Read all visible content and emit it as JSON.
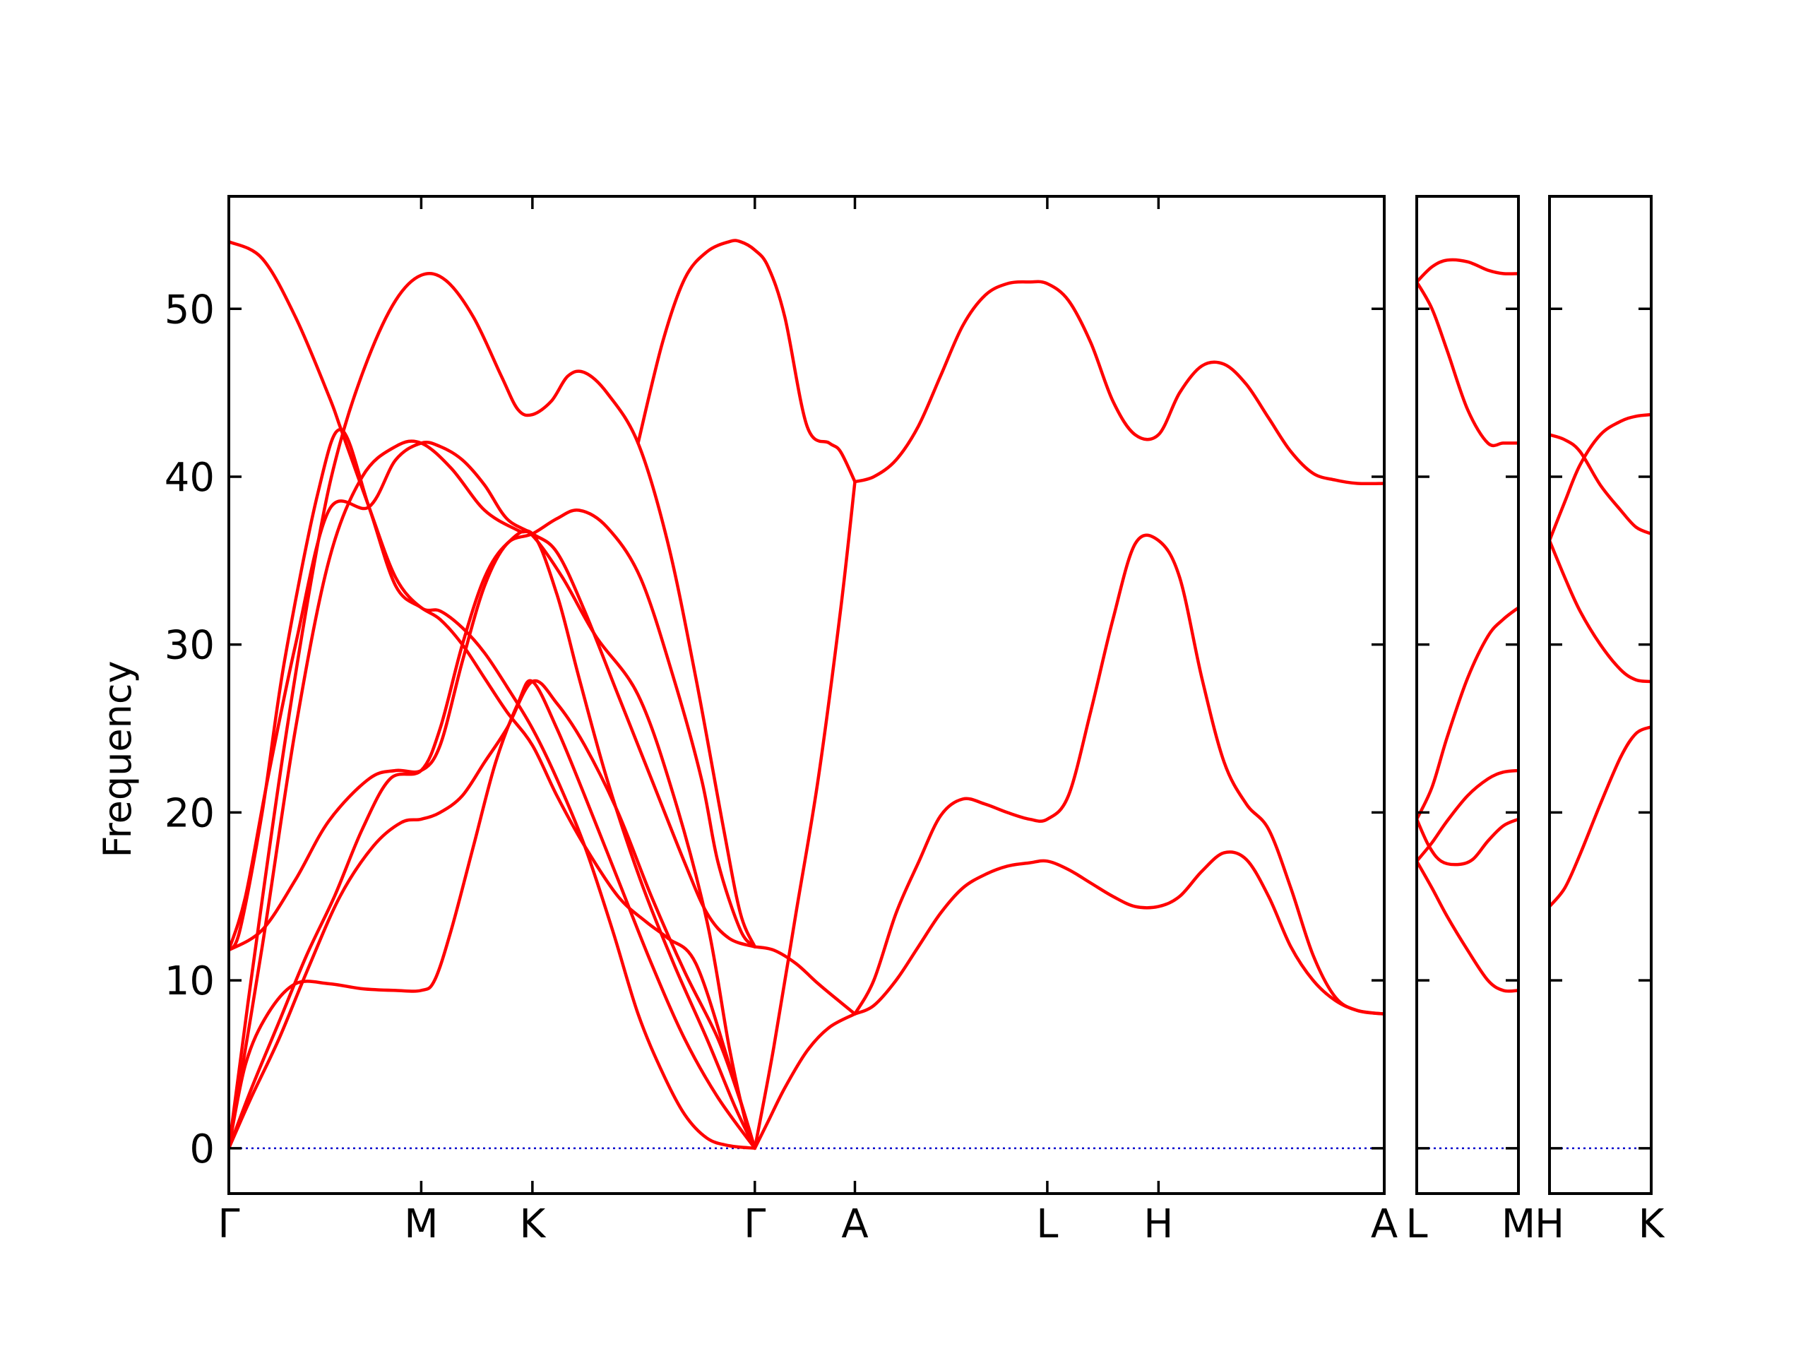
{
  "chart_data": {
    "type": "line",
    "ylabel": "Frequency",
    "ylim": [
      -2.7,
      56.7
    ],
    "yticks": [
      0,
      10,
      20,
      30,
      40,
      50
    ],
    "grid": false,
    "colors": {
      "bands": "#ff0000",
      "zero_line": "#0000cc",
      "frame": "#000000"
    },
    "panels": [
      {
        "name": "main",
        "x_range": [
          0,
          10.39
        ],
        "ticks": [
          {
            "label": "Γ",
            "x": 0
          },
          {
            "label": "M",
            "x": 1.73
          },
          {
            "label": "K",
            "x": 2.73
          },
          {
            "label": "Γ",
            "x": 4.73
          },
          {
            "label": "A",
            "x": 5.63
          },
          {
            "label": "L",
            "x": 7.36
          },
          {
            "label": "H",
            "x": 8.36
          },
          {
            "label": "A",
            "x": 10.39
          }
        ],
        "bands": [
          {
            "name": "b1",
            "x": [
              0,
              0.2,
              0.45,
              0.7,
              0.95,
              1.2,
              1.45,
              1.73,
              1.9,
              2.1,
              2.3,
              2.5,
              2.73,
              2.95,
              3.15,
              3.4,
              3.7,
              4.0,
              4.3,
              4.55,
              4.73
            ],
            "y": [
              0,
              3.5,
              7.5,
              11.5,
              15,
              19,
              22,
              22.5,
              25,
              30,
              34,
              36,
              36.6,
              33,
              28,
              22,
              16,
              11,
              6.5,
              2.5,
              0
            ]
          },
          {
            "name": "b2",
            "x": [
              0,
              0.2,
              0.45,
              0.7,
              1.0,
              1.3,
              1.55,
              1.73,
              1.9,
              2.1,
              2.3,
              2.5,
              2.73,
              2.95,
              3.2,
              3.5,
              3.8,
              4.1,
              4.4,
              4.6,
              4.73
            ],
            "y": [
              0,
              3,
              6.5,
              10.5,
              15,
              18,
              19.4,
              19.6,
              20,
              21,
              23,
              25,
              27.8,
              26.5,
              24,
              20,
              15,
              10.5,
              6.5,
              2.8,
              0
            ]
          },
          {
            "name": "b3",
            "x": [
              0,
              0.15,
              0.35,
              0.6,
              0.9,
              1.2,
              1.5,
              1.73,
              1.85,
              2.0,
              2.2,
              2.4,
              2.6,
              2.73,
              2.95,
              3.2,
              3.5,
              3.8,
              4.1,
              4.4,
              4.73
            ],
            "y": [
              0,
              5,
              8,
              9.8,
              9.8,
              9.5,
              9.4,
              9.4,
              10,
              13,
              18,
              23,
              26.5,
              27.8,
              25,
              21,
              16,
              11,
              6.5,
              3,
              0
            ]
          },
          {
            "name": "b4",
            "x": [
              0,
              0.3,
              0.6,
              0.9,
              1.26,
              1.5,
              1.73,
              1.9,
              2.1,
              2.3,
              2.5,
              2.73,
              2.95,
              3.15,
              3.4,
              3.7,
              4.0,
              4.25,
              4.4,
              4.6,
              4.73
            ],
            "y": [
              11.8,
              13,
              16,
              19.5,
              22,
              22.5,
              22.5,
              24,
              29,
              33.5,
              36,
              36.6,
              37.5,
              38,
              37,
              34,
              28,
              22,
              17,
              13,
              12
            ]
          },
          {
            "name": "b5",
            "x": [
              0,
              0.15,
              0.35,
              0.6,
              0.9,
              1.26,
              1.5,
              1.73,
              1.9,
              2.1,
              2.3,
              2.5,
              2.73,
              2.95,
              3.2,
              3.5,
              3.8,
              4.1,
              4.3,
              4.5,
              4.73
            ],
            "y": [
              11.8,
              15,
              22,
              30,
              38,
              38.2,
              41,
              42,
              41.8,
              41,
              39.5,
              37.5,
              36.6,
              35.5,
              32,
              27,
              22,
              17,
              14,
              12.5,
              12
            ]
          },
          {
            "name": "b6",
            "x": [
              0,
              0.1,
              0.3,
              0.5,
              0.8,
              1.01,
              1.26,
              1.5,
              1.73,
              1.9,
              2.1,
              2.3,
              2.5,
              2.73,
              2.95,
              3.2,
              3.5,
              3.75,
              3.95,
              4.2,
              4.5,
              4.73
            ],
            "y": [
              11.8,
              13,
              20,
              29,
              39,
              42.8,
              38.2,
              33.5,
              32.2,
              31.5,
              30,
              28,
              26,
              24,
              21,
              18,
              15,
              13.5,
              12.5,
              11,
              5,
              0
            ]
          },
          {
            "name": "b7",
            "x": [
              0,
              0.3,
              0.6,
              0.9,
              1.01,
              1.26,
              1.5,
              1.73,
              1.9,
              2.1,
              2.3,
              2.5,
              2.73,
              2.95,
              3.2,
              3.45,
              3.68,
              3.9,
              4.1,
              4.3,
              4.5,
              4.73
            ],
            "y": [
              54,
              53,
              49.5,
              44.8,
              42.8,
              38.2,
              34,
              32.2,
              32,
              31,
              29.5,
              27.5,
              25,
              22,
              18,
              13,
              8,
              4.5,
              2,
              0.6,
              0.15,
              0
            ]
          },
          {
            "name": "b8",
            "x": [
              0,
              0.2,
              0.5,
              0.8,
              1.0,
              1.25,
              1.5,
              1.73,
              1.95,
              2.2,
              2.45,
              2.6,
              2.73,
              2.9,
              3.05,
              3.2,
              3.4,
              3.68,
              3.95,
              4.2,
              4.45,
              4.6,
              4.73
            ],
            "y": [
              0,
              10,
              24,
              36,
              42,
              47,
              50.5,
              52,
              51.7,
              49.5,
              46,
              44,
              43.7,
              44.5,
              46,
              46.2,
              45,
              42,
              36,
              28,
              19,
              14,
              12
            ]
          },
          {
            "name": "b9",
            "x": [
              0,
              0.3,
              0.6,
              0.9,
              1.2,
              1.5,
              1.73,
              2.0,
              2.3,
              2.6,
              2.73,
              3.0,
              3.3,
              3.68,
              4.0,
              4.3,
              4.5,
              4.65,
              4.73
            ],
            "y": [
              0,
              12,
              25,
              35,
              40,
              41.8,
              42,
              40.5,
              38,
              36.8,
              36.5,
              34,
              30.5,
              27,
              21,
              13.5,
              6,
              1.5,
              0
            ]
          },
          {
            "name": "b10",
            "x": [
              4.73,
              4.85,
              5.0,
              5.2,
              5.4,
              5.63
            ],
            "y": [
              0,
              1.6,
              3.6,
              5.8,
              7.2,
              8
            ]
          },
          {
            "name": "b11",
            "x": [
              4.73,
              4.9,
              5.1,
              5.3,
              5.5,
              5.63
            ],
            "y": [
              12,
              11.8,
              11,
              9.8,
              8.7,
              8
            ]
          },
          {
            "name": "b12",
            "x": [
              3.68,
              3.9,
              4.1,
              4.3,
              4.5,
              4.6,
              4.73,
              4.85,
              5.0,
              5.2,
              5.4,
              5.5,
              5.63
            ],
            "y": [
              42,
              48,
              51.8,
              53.4,
              54,
              54,
              53.5,
              52.5,
              49.5,
              43,
              42,
              41.5,
              39.7
            ]
          },
          {
            "name": "b13",
            "x": [
              4.73,
              4.9,
              5.1,
              5.3,
              5.5,
              5.63
            ],
            "y": [
              0,
              6,
              14,
              22,
              32,
              39.7
            ]
          },
          {
            "name": "b14",
            "x": [
              5.63,
              5.8,
              6.0,
              6.2,
              6.4,
              6.6,
              6.8,
              7.0,
              7.2,
              7.36,
              7.55,
              7.75,
              7.95,
              8.15,
              8.36,
              8.55,
              8.75,
              8.95,
              9.15,
              9.35,
              9.55,
              9.75,
              9.95,
              10.15,
              10.39
            ],
            "y": [
              39.7,
              40,
              41,
              43,
              46,
              49,
              50.8,
              51.5,
              51.6,
              51.5,
              50.5,
              48,
              44.5,
              42.5,
              42.5,
              45,
              46.6,
              46.7,
              45.5,
              43.5,
              41.5,
              40.2,
              39.8,
              39.6,
              39.6
            ]
          },
          {
            "name": "b15",
            "x": [
              5.63,
              5.8,
              6.0,
              6.2,
              6.4,
              6.6,
              6.8,
              7.0,
              7.2,
              7.36,
              7.55,
              7.75,
              7.95,
              8.15,
              8.36,
              8.55,
              8.75,
              8.95,
              9.15,
              9.35,
              9.55,
              9.75,
              9.95,
              10.15,
              10.39
            ],
            "y": [
              8,
              10,
              14,
              17,
              19.8,
              20.8,
              20.5,
              20,
              19.6,
              19.6,
              21,
              26,
              31.5,
              36,
              36.2,
              34,
              28,
              23,
              20.5,
              19,
              15.5,
              11.5,
              9,
              8.2,
              8
            ]
          },
          {
            "name": "b16",
            "x": [
              5.63,
              5.8,
              6.0,
              6.2,
              6.4,
              6.6,
              6.8,
              7.0,
              7.2,
              7.36,
              7.55,
              7.75,
              7.95,
              8.15,
              8.36,
              8.55,
              8.75,
              8.95,
              9.15,
              9.35,
              9.55,
              9.75,
              9.95,
              10.15,
              10.39
            ],
            "y": [
              8,
              8.5,
              10,
              12,
              14,
              15.5,
              16.3,
              16.8,
              17,
              17.1,
              16.6,
              15.8,
              15,
              14.4,
              14.4,
              15,
              16.5,
              17.6,
              17.2,
              15,
              12,
              10,
              8.8,
              8.2,
              8
            ]
          }
        ]
      },
      {
        "name": "L-M",
        "x_range": [
          0,
          1.0
        ],
        "ticks": [
          {
            "label": "L",
            "x": 0
          },
          {
            "label": "M",
            "x": 1.0
          }
        ],
        "bands": [
          {
            "name": "b1",
            "x": [
              0,
              0.15,
              0.3,
              0.5,
              0.7,
              0.85,
              1.0
            ],
            "y": [
              51.6,
              52.5,
              52.9,
              52.8,
              52.3,
              52.1,
              52.1
            ]
          },
          {
            "name": "b2",
            "x": [
              0,
              0.15,
              0.3,
              0.5,
              0.7,
              0.85,
              1.0
            ],
            "y": [
              51.6,
              50,
              47.5,
              44,
              42,
              42,
              42
            ]
          },
          {
            "name": "b3",
            "x": [
              0,
              0.15,
              0.3,
              0.5,
              0.7,
              0.85,
              1.0
            ],
            "y": [
              19.6,
              21.5,
              24.5,
              28,
              30.5,
              31.5,
              32.2
            ]
          },
          {
            "name": "b4",
            "x": [
              0,
              0.15,
              0.3,
              0.5,
              0.7,
              0.85,
              1.0
            ],
            "y": [
              17.1,
              18.2,
              19.5,
              21,
              22,
              22.4,
              22.5
            ]
          },
          {
            "name": "b5",
            "x": [
              0,
              0.12,
              0.24,
              0.4,
              0.55,
              0.7,
              0.85,
              1.0
            ],
            "y": [
              19.6,
              18,
              17.1,
              16.9,
              17.2,
              18.3,
              19.2,
              19.6
            ]
          },
          {
            "name": "b6",
            "x": [
              0,
              0.15,
              0.3,
              0.5,
              0.7,
              0.85,
              1.0
            ],
            "y": [
              17.1,
              15.5,
              13.8,
              11.8,
              10,
              9.4,
              9.4
            ]
          }
        ]
      },
      {
        "name": "H-K",
        "x_range": [
          0,
          1.0
        ],
        "ticks": [
          {
            "label": "H",
            "x": 0
          },
          {
            "label": "K",
            "x": 1.0
          }
        ],
        "bands": [
          {
            "name": "b1",
            "x": [
              0,
              0.15,
              0.3,
              0.5,
              0.7,
              0.85,
              1.0
            ],
            "y": [
              42.5,
              42.2,
              41.5,
              39.5,
              38,
              37,
              36.6
            ]
          },
          {
            "name": "b2",
            "x": [
              0,
              0.15,
              0.3,
              0.5,
              0.7,
              0.85,
              1.0
            ],
            "y": [
              36.2,
              38.5,
              40.7,
              42.5,
              43.3,
              43.6,
              43.7
            ]
          },
          {
            "name": "b3",
            "x": [
              0,
              0.15,
              0.3,
              0.5,
              0.7,
              0.85,
              1.0
            ],
            "y": [
              36.2,
              34,
              32,
              30,
              28.5,
              27.9,
              27.8
            ]
          },
          {
            "name": "b4",
            "x": [
              0,
              0.15,
              0.3,
              0.5,
              0.7,
              0.85,
              1.0
            ],
            "y": [
              14.4,
              15.5,
              17.5,
              20.5,
              23.3,
              24.7,
              25.1
            ]
          }
        ]
      }
    ]
  }
}
